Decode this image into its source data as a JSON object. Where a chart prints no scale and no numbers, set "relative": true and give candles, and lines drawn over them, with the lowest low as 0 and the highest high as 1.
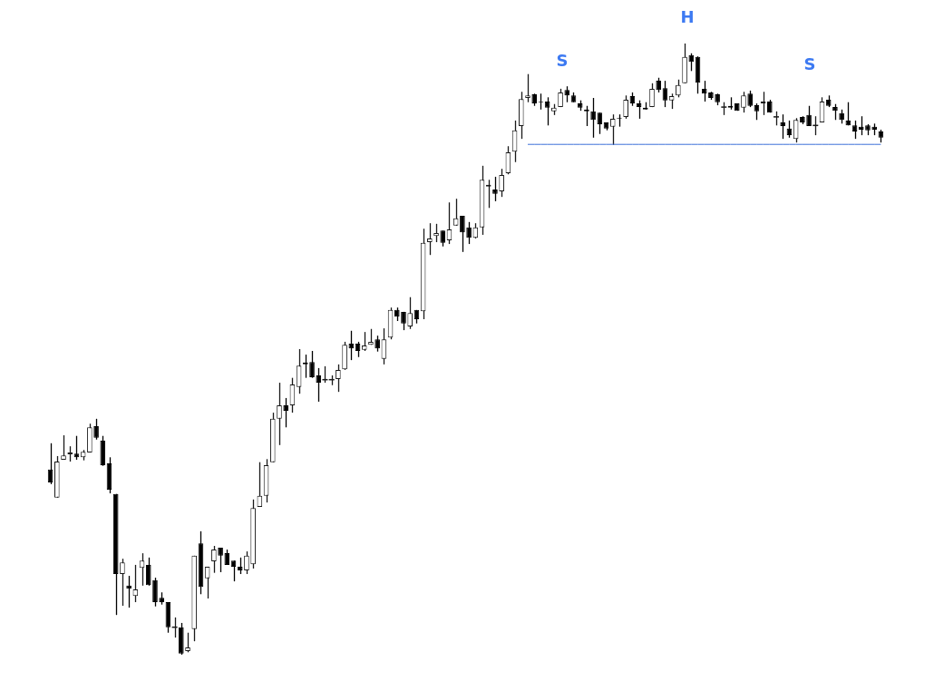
{
  "chart_data": {
    "type": "candlestick",
    "relative": true,
    "annotations": [
      "S",
      "H",
      "S"
    ],
    "categories": [
      null,
      null,
      null,
      null,
      null,
      null,
      null,
      null,
      null,
      null,
      null,
      null,
      null,
      null,
      null,
      null,
      null,
      null,
      null,
      null,
      null,
      null,
      null,
      null,
      null,
      null,
      null,
      null,
      null,
      null,
      null,
      null,
      null,
      null,
      null,
      null,
      null,
      null,
      null,
      null,
      null,
      null,
      null,
      null,
      null,
      null,
      null,
      null,
      null,
      null,
      null,
      null,
      null,
      null,
      null,
      null,
      null,
      null,
      null,
      null,
      null,
      null,
      null,
      null,
      null,
      null,
      null,
      null,
      null,
      null,
      null,
      null,
      null,
      null,
      null,
      null,
      null,
      null,
      null,
      null,
      null,
      null,
      null,
      null,
      null,
      null,
      null,
      null,
      null,
      null,
      null,
      null,
      null,
      null,
      null,
      null,
      null,
      null,
      null,
      null,
      null,
      null,
      null,
      null,
      null,
      null,
      null,
      null,
      null,
      null,
      null,
      null,
      null,
      null,
      null,
      null,
      null,
      null,
      null,
      null,
      null,
      null,
      null,
      null,
      null,
      null,
      null,
      null
    ],
    "series": [
      {
        "colors": [
          "#000000",
          "#1a1a1a",
          "#1a1a1a",
          "#1a1a1a",
          "#000000",
          "#1a1a1a",
          "#1a1a1a",
          "#000000",
          "#000000",
          "#000000",
          "#000000",
          "#1a1a1a",
          "#000000",
          "#1a1a1a",
          "#1a1a1a",
          "#000000",
          "#000000",
          "#000000",
          "#000000",
          "#1a1a1a",
          "#000000",
          "#1a1a1a",
          "#1a1a1a",
          "#000000",
          "#1a1a1a",
          "#1a1a1a",
          "#000000",
          "#000000",
          "#000000",
          "#000000",
          "#1a1a1a",
          "#1a1a1a",
          "#1a1a1a",
          "#1a1a1a",
          "#1a1a1a",
          "#1a1a1a",
          "#000000",
          "#1a1a1a",
          "#1a1a1a",
          "#000000",
          "#000000",
          "#000000",
          "#1a1a1a",
          "#1a1a1a",
          "#1a1a1a",
          "#1a1a1a",
          "#000000",
          "#000000",
          "#1a1a1a",
          "#1a1a1a",
          "#000000",
          "#1a1a1a",
          "#1a1a1a",
          "#000000",
          "#000000",
          "#1a1a1a",
          "#000000",
          "#1a1a1a",
          "#1a1a1a",
          "#1a1a1a",
          "#000000",
          "#1a1a1a",
          "#1a1a1a",
          "#000000",
          "#000000",
          "#1a1a1a",
          "#1a1a1a",
          "#1a1a1a",
          "#000000",
          "#1a1a1a",
          "#1a1a1a",
          "#1a1a1a",
          "#1a1a1a",
          "#1a1a1a",
          "#000000",
          "#000000",
          "#000000",
          "#1a1a1a",
          "#1a1a1a",
          "#000000",
          "#000000",
          "#000000",
          "#000000",
          "#000000",
          "#000000",
          "#000000",
          "#1a1a1a",
          "#000000",
          "#1a1a1a",
          "#000000",
          "#000000",
          "#000000",
          "#1a1a1a",
          "#000000",
          "#000000",
          "#1a1a1a",
          "#1a1a1a",
          "#1a1a1a",
          "#000000",
          "#000000",
          "#000000",
          "#000000",
          "#000000",
          "#1a1a1a",
          "#000000",
          "#000000",
          "#1a1a1a",
          "#000000",
          "#000000",
          "#1a1a1a",
          "#000000",
          "#1a1a1a",
          "#000000",
          "#000000",
          "#1a1a1a",
          "#000000",
          "#000000",
          "#1a1a1a",
          "#1a1a1a",
          "#000000",
          "#000000",
          "#000000",
          "#000000",
          "#000000",
          "#000000",
          "#000000",
          "#000000",
          "#000000"
        ],
        "ohlc": [
          [
            0.303,
            0.346,
            0.279,
            0.282
          ],
          [
            0.257,
            0.325,
            0.257,
            0.316
          ],
          [
            0.319,
            0.359,
            0.319,
            0.326
          ],
          [
            0.328,
            0.341,
            0.316,
            0.331
          ],
          [
            0.329,
            0.358,
            0.319,
            0.323
          ],
          [
            0.323,
            0.335,
            0.318,
            0.332
          ],
          [
            0.331,
            0.378,
            0.331,
            0.372
          ],
          [
            0.374,
            0.386,
            0.352,
            0.355
          ],
          [
            0.35,
            0.358,
            0.309,
            0.31
          ],
          [
            0.313,
            0.323,
            0.264,
            0.27
          ],
          [
            0.263,
            0.263,
            0.065,
            0.132
          ],
          [
            0.132,
            0.157,
            0.08,
            0.151
          ],
          [
            0.113,
            0.129,
            0.077,
            0.108
          ],
          [
            0.096,
            0.147,
            0.086,
            0.107
          ],
          [
            0.142,
            0.166,
            0.113,
            0.154
          ],
          [
            0.147,
            0.159,
            0.113,
            0.114
          ],
          [
            0.122,
            0.126,
            0.079,
            0.086
          ],
          [
            0.093,
            0.102,
            0.082,
            0.086
          ],
          [
            0.086,
            0.086,
            0.036,
            0.045
          ],
          [
            0.045,
            0.061,
            0.028,
            0.045
          ],
          [
            0.045,
            0.052,
            0.0,
            0.002
          ],
          [
            0.006,
            0.036,
            0.004,
            0.012
          ],
          [
            0.042,
            0.162,
            0.022,
            0.162
          ],
          [
            0.182,
            0.202,
            0.099,
            0.111
          ],
          [
            0.125,
            0.144,
            0.092,
            0.144
          ],
          [
            0.153,
            0.178,
            0.134,
            0.172
          ],
          [
            0.175,
            0.175,
            0.135,
            0.162
          ],
          [
            0.166,
            0.172,
            0.147,
            0.147
          ],
          [
            0.154,
            0.154,
            0.12,
            0.144
          ],
          [
            0.144,
            0.159,
            0.132,
            0.138
          ],
          [
            0.138,
            0.169,
            0.132,
            0.162
          ],
          [
            0.148,
            0.254,
            0.141,
            0.24
          ],
          [
            0.242,
            0.315,
            0.242,
            0.26
          ],
          [
            0.26,
            0.32,
            0.249,
            0.31
          ],
          [
            0.315,
            0.396,
            0.315,
            0.386
          ],
          [
            0.386,
            0.445,
            0.343,
            0.408
          ],
          [
            0.408,
            0.42,
            0.372,
            0.399
          ],
          [
            0.408,
            0.453,
            0.396,
            0.442
          ],
          [
            0.438,
            0.5,
            0.427,
            0.473
          ],
          [
            0.478,
            0.491,
            0.453,
            0.475
          ],
          [
            0.479,
            0.497,
            0.453,
            0.454
          ],
          [
            0.457,
            0.469,
            0.414,
            0.445
          ],
          [
            0.45,
            0.472,
            0.445,
            0.45
          ],
          [
            0.45,
            0.457,
            0.441,
            0.45
          ],
          [
            0.451,
            0.475,
            0.43,
            0.466
          ],
          [
            0.467,
            0.512,
            0.466,
            0.507
          ],
          [
            0.509,
            0.53,
            0.482,
            0.501
          ],
          [
            0.509,
            0.512,
            0.487,
            0.497
          ],
          [
            0.499,
            0.528,
            0.497,
            0.506
          ],
          [
            0.507,
            0.533,
            0.507,
            0.512
          ],
          [
            0.516,
            0.522,
            0.496,
            0.501
          ],
          [
            0.484,
            0.534,
            0.475,
            0.516
          ],
          [
            0.519,
            0.568,
            0.516,
            0.564
          ],
          [
            0.564,
            0.568,
            0.546,
            0.553
          ],
          [
            0.561,
            0.561,
            0.531,
            0.542
          ],
          [
            0.537,
            0.585,
            0.533,
            0.559
          ],
          [
            0.564,
            0.564,
            0.542,
            0.549
          ],
          [
            0.562,
            0.697,
            0.549,
            0.674
          ],
          [
            0.675,
            0.706,
            0.654,
            0.681
          ],
          [
            0.685,
            0.705,
            0.675,
            0.69
          ],
          [
            0.694,
            0.694,
            0.668,
            0.674
          ],
          [
            0.678,
            0.74,
            0.672,
            0.696
          ],
          [
            0.702,
            0.746,
            0.702,
            0.714
          ],
          [
            0.718,
            0.718,
            0.659,
            0.691
          ],
          [
            0.699,
            0.708,
            0.672,
            0.682
          ],
          [
            0.682,
            0.706,
            0.681,
            0.699
          ],
          [
            0.699,
            0.8,
            0.687,
            0.777
          ],
          [
            0.766,
            0.777,
            0.731,
            0.769
          ],
          [
            0.761,
            0.782,
            0.742,
            0.754
          ],
          [
            0.758,
            0.795,
            0.749,
            0.785
          ],
          [
            0.788,
            0.832,
            0.786,
            0.822
          ],
          [
            0.823,
            0.874,
            0.806,
            0.858
          ],
          [
            0.865,
            0.921,
            0.844,
            0.909
          ],
          [
            0.911,
            0.95,
            0.904,
            0.915
          ],
          [
            0.917,
            0.918,
            0.898,
            0.902
          ],
          [
            0.905,
            0.918,
            0.892,
            0.904
          ],
          [
            0.905,
            0.912,
            0.866,
            0.895
          ],
          [
            0.889,
            0.901,
            0.883,
            0.895
          ],
          [
            0.896,
            0.926,
            0.896,
            0.92
          ],
          [
            0.924,
            0.93,
            0.904,
            0.915
          ],
          [
            0.915,
            0.92,
            0.904,
            0.904
          ],
          [
            0.902,
            0.907,
            0.89,
            0.895
          ],
          [
            0.892,
            0.898,
            0.865,
            0.889
          ],
          [
            0.889,
            0.911,
            0.846,
            0.875
          ],
          [
            0.887,
            0.887,
            0.852,
            0.868
          ],
          [
            0.871,
            0.871,
            0.858,
            0.861
          ],
          [
            0.864,
            0.884,
            0.834,
            0.877
          ],
          [
            0.878,
            0.884,
            0.864,
            0.877
          ],
          [
            0.88,
            0.915,
            0.877,
            0.908
          ],
          [
            0.914,
            0.92,
            0.898,
            0.902
          ],
          [
            0.902,
            0.907,
            0.877,
            0.896
          ],
          [
            0.895,
            0.904,
            0.892,
            0.892
          ],
          [
            0.896,
            0.935,
            0.896,
            0.926
          ],
          [
            0.939,
            0.944,
            0.92,
            0.924
          ],
          [
            0.927,
            0.939,
            0.896,
            0.907
          ],
          [
            0.907,
            0.918,
            0.893,
            0.914
          ],
          [
            0.915,
            0.941,
            0.912,
            0.932
          ],
          [
            0.935,
            1,
            0.935,
            0.978
          ],
          [
            0.981,
            0.984,
            0.955,
            0.97
          ],
          [
            0.978,
            0.979,
            0.918,
            0.936
          ],
          [
            0.926,
            0.939,
            0.905,
            0.918
          ],
          [
            0.92,
            0.921,
            0.908,
            0.911
          ],
          [
            0.917,
            0.918,
            0.899,
            0.904
          ],
          [
            0.896,
            0.904,
            0.883,
            0.896
          ],
          [
            0.898,
            0.912,
            0.892,
            0.895
          ],
          [
            0.902,
            0.902,
            0.89,
            0.89
          ],
          [
            0.895,
            0.921,
            0.887,
            0.915
          ],
          [
            0.918,
            0.923,
            0.896,
            0.898
          ],
          [
            0.899,
            0.902,
            0.875,
            0.889
          ],
          [
            0.902,
            0.921,
            0.883,
            0.905
          ],
          [
            0.905,
            0.908,
            0.887,
            0.887
          ],
          [
            0.88,
            0.889,
            0.866,
            0.88
          ],
          [
            0.871,
            0.884,
            0.844,
            0.865
          ],
          [
            0.861,
            0.874,
            0.846,
            0.85
          ],
          [
            0.844,
            0.878,
            0.838,
            0.875
          ],
          [
            0.88,
            0.881,
            0.868,
            0.871
          ],
          [
            0.883,
            0.898,
            0.865,
            0.865
          ],
          [
            0.866,
            0.881,
            0.85,
            0.866
          ],
          [
            0.871,
            0.912,
            0.871,
            0.905
          ],
          [
            0.908,
            0.915,
            0.896,
            0.898
          ],
          [
            0.896,
            0.901,
            0.875,
            0.89
          ],
          [
            0.886,
            0.892,
            0.869,
            0.875
          ],
          [
            0.874,
            0.904,
            0.866,
            0.866
          ],
          [
            0.866,
            0.874,
            0.844,
            0.856
          ],
          [
            0.864,
            0.881,
            0.85,
            0.859
          ],
          [
            0.866,
            0.868,
            0.85,
            0.858
          ],
          [
            0.864,
            0.869,
            0.85,
            0.859
          ],
          [
            0.856,
            0.859,
            0.838,
            0.846
          ]
        ]
      },
      {
        "type": "line",
        "color": "#3a6fd8",
        "values": [
          null,
          null,
          null,
          null,
          null,
          null,
          null,
          null,
          null,
          null,
          null,
          null,
          null,
          null,
          null,
          null,
          null,
          null,
          null,
          null,
          null,
          null,
          null,
          null,
          null,
          null,
          null,
          null,
          null,
          null,
          null,
          null,
          null,
          null,
          null,
          null,
          null,
          null,
          null,
          null,
          null,
          null,
          null,
          null,
          null,
          null,
          null,
          null,
          null,
          null,
          null,
          null,
          null,
          null,
          null,
          null,
          null,
          null,
          null,
          null,
          null,
          null,
          null,
          null,
          null,
          null,
          null,
          null,
          null,
          null,
          null,
          null,
          null,
          0.835,
          0.835,
          0.835,
          0.835,
          0.835,
          0.835,
          0.835,
          0.835,
          0.835,
          0.835,
          0.835,
          0.835,
          0.835,
          0.835,
          0.835,
          0.835,
          0.835,
          0.835,
          0.835,
          0.835,
          0.835,
          0.835,
          0.835,
          0.835,
          0.835,
          0.835,
          0.835,
          0.835,
          0.835,
          0.835,
          0.835,
          0.835,
          0.835,
          0.835,
          0.835,
          0.835,
          0.835,
          0.835,
          0.835,
          0.835,
          0.835,
          0.835,
          0.835,
          0.835,
          0.835,
          0.835,
          0.835,
          0.835,
          0.835,
          0.835,
          0.835,
          0.835,
          0.835,
          0.835,
          0.835
        ]
      }
    ]
  }
}
